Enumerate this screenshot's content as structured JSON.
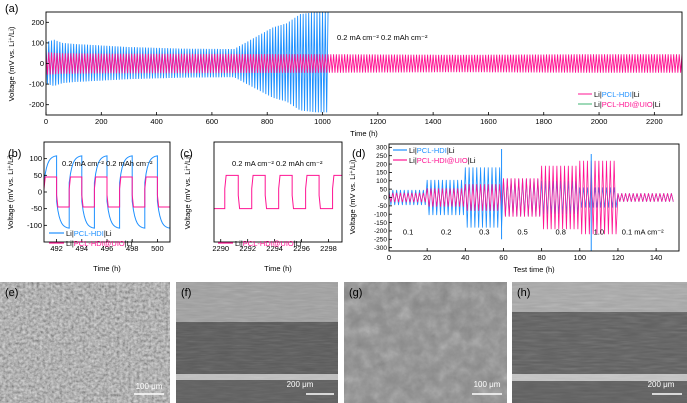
{
  "chart_data": [
    {
      "panel": "(a)",
      "type": "line",
      "xlabel": "Time (h)",
      "ylabel": "Voltage (mV vs. Li⁺/Li)",
      "xlim": [
        0,
        2300
      ],
      "ylim": [
        -250,
        250
      ],
      "x_ticks": [
        0,
        200,
        400,
        600,
        800,
        1000,
        1200,
        1400,
        1600,
        1800,
        2000,
        2200
      ],
      "y_ticks": [
        -200,
        -100,
        0,
        100,
        200
      ],
      "annotation": "0.2 mA cm⁻²  0.2 mAh cm⁻²",
      "series": [
        {
          "name": "Li|PCL-HDI|Li",
          "prefix": "Li|",
          "core": "PCL-HDI",
          "suffix": "|Li",
          "color": "#1E90FF",
          "envelope_x": [
            0,
            30,
            60,
            100,
            300,
            500,
            680,
            760,
            820,
            870,
            920,
            980,
            1020
          ],
          "envelope_y": [
            105,
            115,
            100,
            95,
            80,
            72,
            70,
            130,
            175,
            195,
            240,
            250,
            250
          ]
        },
        {
          "name": "Li|PCL-HDI@UIO|Li",
          "prefix": "Li|",
          "core": "PCL-HDI@UIO",
          "suffix": "|Li",
          "color": "#FF1493",
          "envelope_x": [
            0,
            50,
            200,
            500,
            1000,
            1500,
            2000,
            2300
          ],
          "envelope_y": [
            55,
            50,
            48,
            47,
            45,
            42,
            45,
            45
          ]
        }
      ]
    },
    {
      "panel": "(b)",
      "type": "line",
      "xlabel": "Time (h)",
      "ylabel": "Voltage (mV vs. Li⁺/Li)",
      "xlim": [
        491,
        501
      ],
      "ylim": [
        -150,
        150
      ],
      "x_ticks": [
        492,
        494,
        496,
        498,
        500
      ],
      "y_ticks": [
        -100,
        -50,
        0,
        50,
        100
      ],
      "annotation": "0.2 mA cm⁻²  0.2 mAh cm⁻²",
      "cycle_period_h": 2,
      "series": [
        {
          "name": "Li|PCL-HDI|Li",
          "prefix": "Li|",
          "core": "PCL-HDI",
          "suffix": "|Li",
          "color": "#1E90FF",
          "amplitude": 110
        },
        {
          "name": "Li|PCL-HDI@UIO|Li",
          "prefix": "Li|",
          "core": "PCL-HDI@UIO",
          "suffix": "|Li",
          "color": "#FF1493",
          "amplitude": 45
        }
      ]
    },
    {
      "panel": "(c)",
      "type": "line",
      "xlabel": "Time (h)",
      "ylabel": "Voltage (mV vs. Li⁺/Li)",
      "xlim": [
        2289.5,
        2299
      ],
      "ylim": [
        -150,
        150
      ],
      "x_ticks": [
        2290,
        2292,
        2294,
        2296,
        2298
      ],
      "y_ticks": [],
      "annotation": "0.2 mA cm⁻²  0.2 mAh cm⁻²",
      "cycle_period_h": 2,
      "series": [
        {
          "name": "Li|PCL-HDI@UIO|Li",
          "prefix": "Li|",
          "core": "PCL-HDI@UIO",
          "suffix": "|Li",
          "color": "#FF1493",
          "amplitude": 50
        }
      ]
    },
    {
      "panel": "(d)",
      "type": "line",
      "xlabel": "Test time (h)",
      "ylabel": "Voltage (mV vs. Li⁺/Li)",
      "xlim": [
        0,
        152
      ],
      "ylim": [
        -320,
        320
      ],
      "x_ticks": [
        0,
        20,
        40,
        60,
        80,
        100,
        120,
        140
      ],
      "y_ticks": [
        -300,
        -250,
        -200,
        -150,
        -100,
        -50,
        0,
        50,
        100,
        150,
        200,
        250,
        300
      ],
      "rate_labels": [
        {
          "text": "0.1",
          "x": 10
        },
        {
          "text": "0.2",
          "x": 30
        },
        {
          "text": "0.3",
          "x": 50
        },
        {
          "text": "0.5",
          "x": 70
        },
        {
          "text": "0.8",
          "x": 90
        },
        {
          "text": "1.0",
          "x": 110
        },
        {
          "text": "0.1 mA cm⁻²",
          "x": 133
        }
      ],
      "segments": [
        {
          "start": 0,
          "end": 20,
          "blue": 45,
          "pink": 28
        },
        {
          "start": 20,
          "end": 40,
          "blue": 105,
          "pink": 55
        },
        {
          "start": 40,
          "end": 60,
          "blue": 180,
          "pink": 80
        },
        {
          "start": 60,
          "end": 80,
          "blue": 110,
          "pink": 115
        },
        {
          "start": 80,
          "end": 100,
          "blue": 100,
          "pink": 190
        },
        {
          "start": 100,
          "end": 120,
          "blue": 60,
          "pink": 220
        },
        {
          "start": 120,
          "end": 150,
          "blue": 25,
          "pink": 25
        }
      ],
      "spikes": [
        {
          "x": 59,
          "y_max": 290,
          "y_min": -250
        },
        {
          "x": 106,
          "y_max": 260,
          "y_min": -320
        }
      ],
      "series": [
        {
          "name": "Li|PCL-HDI|Li",
          "prefix": "Li|",
          "core": "PCL-HDI",
          "suffix": "|Li",
          "color": "#1E90FF"
        },
        {
          "name": "Li|PCL-HDI@UIO|Li",
          "prefix": "Li|",
          "core": "PCL-HDI@UIO",
          "suffix": "|Li",
          "color": "#FF1493"
        }
      ]
    }
  ],
  "sem_panels": [
    {
      "label": "(e)",
      "scale": "100 μm",
      "tone": "granular"
    },
    {
      "label": "(f)",
      "scale": "200 μm",
      "tone": "cross"
    },
    {
      "label": "(g)",
      "scale": "100 μm",
      "tone": "smooth"
    },
    {
      "label": "(h)",
      "scale": "200 μm",
      "tone": "cross2"
    }
  ]
}
